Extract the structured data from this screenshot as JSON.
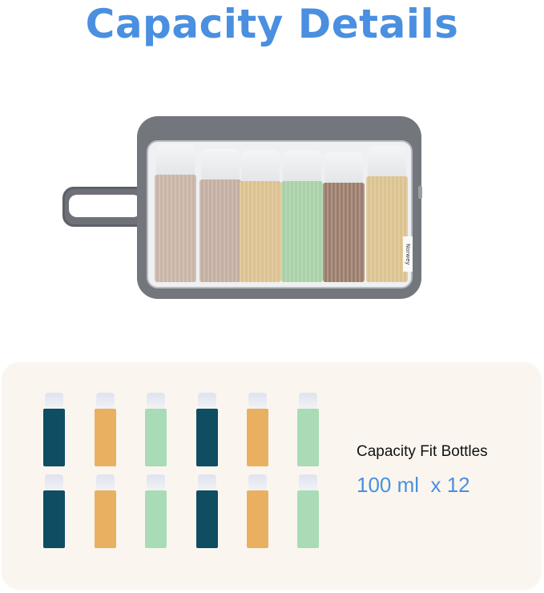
{
  "title": "Capacity Details",
  "bag": {
    "brand_label": "Norwey",
    "bottle_colors": [
      "#c9b5a7",
      "#c4aea1",
      "#dcc18f",
      "#a8d0a6",
      "#9c7e6d",
      "#dcc28f"
    ]
  },
  "capacity": {
    "label": "Capacity Fit Bottles",
    "value": "100 ml  x 12"
  },
  "bottle_colors": [
    "#0f4d63",
    "#e9b062",
    "#a9dcb6",
    "#0f4d63",
    "#e9b062",
    "#a9dcb6"
  ],
  "colors": {
    "accent": "#4a8fe0",
    "panel": "#faf6ef",
    "bag": "#73767c"
  }
}
